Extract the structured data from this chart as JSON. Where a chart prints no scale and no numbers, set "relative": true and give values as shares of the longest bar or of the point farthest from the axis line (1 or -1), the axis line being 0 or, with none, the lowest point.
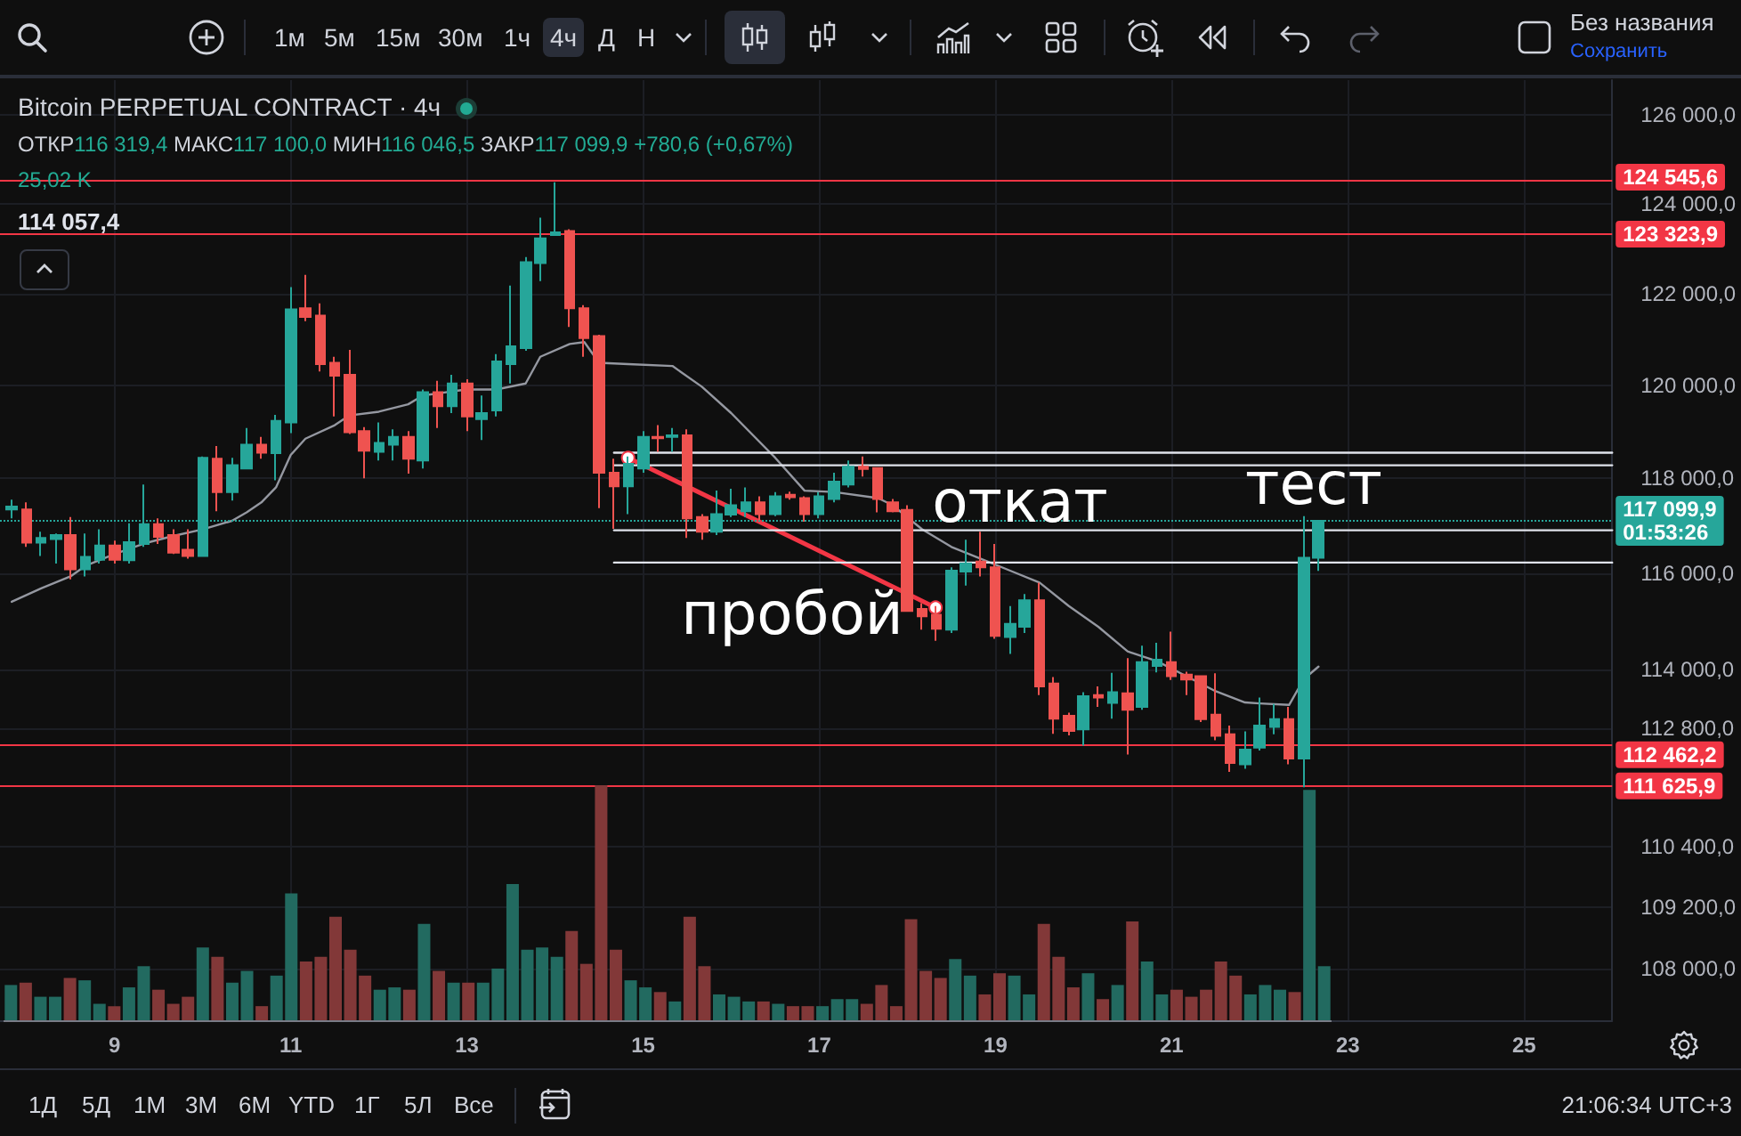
{
  "chart_data": [
    {
      "type": "candlestick",
      "title": "Bitcoin PERPETUAL CONTRACT · 4ч",
      "subtitle": "ОТКР116 319,4 МАКС117 100,0 МИН116 046,5 ЗАКР117 099,9 +780,6 (+0,67%)",
      "x": [
        7.833,
        8,
        8.167,
        8.333,
        8.5,
        8.667,
        8.833,
        9,
        9.167,
        9.333,
        9.5,
        9.667,
        9.833,
        10,
        10.167,
        10.333,
        10.5,
        10.667,
        10.833,
        11,
        11.167,
        11.333,
        11.5,
        11.667,
        11.833,
        12,
        12.167,
        12.333,
        12.5,
        12.667,
        12.833,
        13,
        13.167,
        13.333,
        13.5,
        13.667,
        13.833,
        14,
        14.167,
        14.333,
        14.5,
        14.667,
        14.833,
        15,
        15.167,
        15.333,
        15.5,
        15.667,
        15.833,
        16,
        16.167,
        16.333,
        16.5,
        16.667,
        16.833,
        17,
        17.167,
        17.333,
        17.5,
        17.667,
        17.833,
        18,
        18.167,
        18.333,
        18.5,
        18.667,
        18.833,
        19,
        19.167,
        19.333,
        19.5,
        19.667,
        19.833,
        20,
        20.167,
        20.333,
        20.5,
        20.667,
        20.833,
        21,
        21.167,
        21.333,
        21.5,
        21.667,
        21.833,
        22,
        22.167,
        22.333,
        22.5,
        22.667
      ],
      "xlim": [
        7.7,
        26
      ],
      "xticks": [
        9,
        11,
        13,
        15,
        17,
        19,
        21,
        23,
        25
      ],
      "ylim": [
        107000,
        126800
      ],
      "log": true,
      "yticks": [
        {
          "value": 108000,
          "label": "108 000,0"
        },
        {
          "value": 109200,
          "label": "109 200,0"
        },
        {
          "value": 110400,
          "label": "110 400,0"
        },
        {
          "value": 112800,
          "label": "112 800,0"
        },
        {
          "value": 114000,
          "label": "114 000,0"
        },
        {
          "value": 116000,
          "label": "116 000,0"
        },
        {
          "value": 118000,
          "label": "118 000,0"
        },
        {
          "value": 120000,
          "label": "120 000,0"
        },
        {
          "value": 122000,
          "label": "122 000,0"
        },
        {
          "value": 124000,
          "label": "124 000,0"
        },
        {
          "value": 126000,
          "label": "126 000,0"
        }
      ],
      "grid": true,
      "marker": "none",
      "series": [
        {
          "ohlc": [
            [
              117340,
              117550,
              117150,
              117400
            ],
            [
              117340,
              117490,
              116550,
              116640
            ],
            [
              116640,
              116870,
              116360,
              116740
            ],
            [
              116715,
              116830,
              116200,
              116800
            ],
            [
              116800,
              117180,
              115870,
              116080
            ],
            [
              116080,
              116830,
              115930,
              116340
            ],
            [
              116280,
              116920,
              116200,
              116580
            ],
            [
              116580,
              116680,
              116200,
              116280
            ],
            [
              116270,
              117050,
              116200,
              116650
            ],
            [
              116610,
              117870,
              116550,
              117030
            ],
            [
              117030,
              117150,
              116610,
              116760
            ],
            [
              116800,
              116920,
              116400,
              116430
            ],
            [
              116490,
              116920,
              116300,
              116360
            ],
            [
              116360,
              118470,
              116340,
              118440
            ],
            [
              118420,
              118690,
              117300,
              117710
            ],
            [
              117710,
              118440,
              117530,
              118280
            ],
            [
              118210,
              119080,
              118190,
              118720
            ],
            [
              118720,
              118890,
              118420,
              118550
            ],
            [
              118540,
              119360,
              117960,
              119230
            ],
            [
              119200,
              122150,
              118970,
              121660
            ],
            [
              121680,
              122420,
              121400,
              121490
            ],
            [
              121520,
              121790,
              120300,
              120460
            ],
            [
              120490,
              120620,
              119330,
              120210
            ],
            [
              120230,
              120770,
              118950,
              118990
            ],
            [
              119010,
              119100,
              118000,
              118590
            ],
            [
              118570,
              119200,
              118380,
              118760
            ],
            [
              118720,
              119050,
              118380,
              118890
            ],
            [
              118890,
              119010,
              118100,
              118420
            ],
            [
              118380,
              119910,
              118210,
              119850
            ],
            [
              119850,
              120100,
              119080,
              119550
            ],
            [
              119550,
              120230,
              119400,
              120040
            ],
            [
              120040,
              120130,
              119010,
              119330
            ],
            [
              119270,
              119780,
              118820,
              119400
            ],
            [
              119460,
              120680,
              119330,
              120520
            ],
            [
              120460,
              122180,
              120040,
              120850
            ],
            [
              120810,
              122810,
              120750,
              122700
            ],
            [
              122680,
              123690,
              122280,
              123230
            ],
            [
              123300,
              124480,
              123300,
              123360
            ],
            [
              123390,
              123430,
              121270,
              121680
            ],
            [
              121680,
              121750,
              120620,
              121030
            ],
            [
              121070,
              121100,
              117370,
              118120
            ],
            [
              118120,
              118420,
              116930,
              117830
            ],
            [
              117830,
              118470,
              117240,
              118310
            ],
            [
              118210,
              119010,
              118120,
              118890
            ],
            [
              118890,
              119140,
              118570,
              118860
            ],
            [
              118890,
              119080,
              118570,
              118920
            ],
            [
              118920,
              119050,
              116740,
              117150
            ],
            [
              117180,
              117240,
              116700,
              116870
            ],
            [
              116870,
              117740,
              116800,
              117240
            ],
            [
              117230,
              117780,
              117180,
              117430
            ],
            [
              117300,
              117810,
              117180,
              117490
            ],
            [
              117490,
              117620,
              117110,
              117240
            ],
            [
              117240,
              117710,
              117200,
              117620
            ],
            [
              117650,
              117720,
              117550,
              117600
            ],
            [
              117580,
              117620,
              117080,
              117240
            ],
            [
              117240,
              117710,
              117150,
              117620
            ],
            [
              117560,
              118120,
              117490,
              117930
            ],
            [
              117870,
              118380,
              117810,
              118250
            ],
            [
              118250,
              118470,
              118040,
              118200
            ],
            [
              118220,
              118240,
              117280,
              117560
            ],
            [
              117490,
              117560,
              117280,
              117300
            ],
            [
              117330,
              117430,
              115190,
              115210
            ],
            [
              115250,
              115370,
              114820,
              115100
            ],
            [
              115130,
              115310,
              114590,
              114840
            ],
            [
              114820,
              116120,
              114750,
              116050
            ],
            [
              116030,
              116700,
              115740,
              116200
            ],
            [
              116240,
              116870,
              115930,
              116120
            ],
            [
              116120,
              116610,
              114630,
              114690
            ],
            [
              114670,
              115310,
              114320,
              114940
            ],
            [
              114880,
              115560,
              114750,
              115430
            ],
            [
              115430,
              115800,
              113470,
              113650
            ],
            [
              113710,
              113840,
              112680,
              112990
            ],
            [
              113050,
              113110,
              112650,
              112740
            ],
            [
              112770,
              113530,
              112440,
              113450
            ],
            [
              113470,
              113650,
              113230,
              113420
            ],
            [
              113310,
              113930,
              112990,
              113530
            ],
            [
              113510,
              114230,
              112260,
              113170
            ],
            [
              113230,
              114490,
              113170,
              114150
            ],
            [
              114070,
              114550,
              113940,
              114200
            ],
            [
              114150,
              114780,
              113780,
              113860
            ],
            [
              113890,
              113950,
              113470,
              113790
            ],
            [
              113860,
              113870,
              112920,
              112980
            ],
            [
              113070,
              113920,
              112550,
              112640
            ],
            [
              112670,
              112850,
              111910,
              112090
            ],
            [
              112060,
              112730,
              111970,
              112360
            ],
            [
              112400,
              113420,
              112340,
              112850
            ],
            [
              112820,
              113290,
              112670,
              112980
            ],
            [
              112980,
              113230,
              112060,
              112180
            ],
            [
              112180,
              117200,
              111600,
              116319.4
            ],
            [
              116319.4,
              117100.0,
              116046.5,
              117099.9
            ]
          ],
          "colors": [
            "#26a69a",
            "#ef5350",
            "#26a69a",
            "#26a69a",
            "#ef5350",
            "#26a69a",
            "#26a69a",
            "#ef5350",
            "#26a69a",
            "#26a69a",
            "#ef5350",
            "#ef5350",
            "#ef5350",
            "#26a69a",
            "#ef5350",
            "#26a69a",
            "#26a69a",
            "#ef5350",
            "#26a69a",
            "#26a69a",
            "#ef5350",
            "#ef5350",
            "#ef5350",
            "#ef5350",
            "#ef5350",
            "#26a69a",
            "#26a69a",
            "#ef5350",
            "#26a69a",
            "#ef5350",
            "#26a69a",
            "#ef5350",
            "#26a69a",
            "#26a69a",
            "#26a69a",
            "#26a69a",
            "#26a69a",
            "#26a69a",
            "#ef5350",
            "#ef5350",
            "#ef5350",
            "#ef5350",
            "#26a69a",
            "#26a69a",
            "#ef5350",
            "#26a69a",
            "#ef5350",
            "#ef5350",
            "#26a69a",
            "#26a69a",
            "#26a69a",
            "#ef5350",
            "#26a69a",
            "#ef5350",
            "#ef5350",
            "#26a69a",
            "#26a69a",
            "#26a69a",
            "#ef5350",
            "#ef5350",
            "#ef5350",
            "#ef5350",
            "#ef5350",
            "#ef5350",
            "#26a69a",
            "#26a69a",
            "#ef5350",
            "#ef5350",
            "#26a69a",
            "#26a69a",
            "#ef5350",
            "#ef5350",
            "#ef5350",
            "#26a69a",
            "#ef5350",
            "#26a69a",
            "#ef5350",
            "#26a69a",
            "#26a69a",
            "#ef5350",
            "#ef5350",
            "#ef5350",
            "#ef5350",
            "#ef5350",
            "#26a69a",
            "#26a69a",
            "#26a69a",
            "#ef5350",
            "#26a69a",
            "#26a69a"
          ]
        },
        {
          "type": "line",
          "color": "#9598a1",
          "x": [
            7.833,
            8.167,
            8.5,
            8.667,
            9,
            9.333,
            9.667,
            10,
            10.333,
            10.5,
            10.667,
            10.833,
            11,
            11.167,
            11.5,
            11.667,
            12,
            12.333,
            12.5,
            12.833,
            13,
            13.333,
            13.667,
            13.833,
            14.167,
            14.333,
            14.5,
            14.833,
            15.333,
            15.667,
            16,
            16.5,
            16.833,
            17.167,
            17.667,
            17.833,
            18.167,
            18.5,
            18.833,
            19.167,
            19.5,
            19.833,
            20.167,
            20.5,
            20.833,
            21.167,
            21.5,
            21.833,
            22,
            22.333,
            22.5,
            22.667
          ],
          "values": [
            115400,
            115680,
            115930,
            116150,
            116400,
            116620,
            116780,
            116920,
            117100,
            117280,
            117490,
            117810,
            118500,
            118850,
            119140,
            119350,
            119430,
            119590,
            119780,
            119870,
            119910,
            119910,
            120040,
            120620,
            120900,
            120940,
            120490,
            120460,
            120420,
            119970,
            119400,
            118440,
            117740,
            117710,
            117580,
            117430,
            116920,
            116550,
            116300,
            116050,
            115800,
            115310,
            114880,
            114370,
            114170,
            113860,
            113550,
            113320,
            113300,
            113270,
            113800,
            114057.4
          ]
        },
        {
          "type": "line",
          "color": "#f23645",
          "marker": "circle",
          "x": [
            14.83,
            18.32
          ],
          "values": [
            118440,
            115280
          ]
        },
        {
          "type": "line",
          "color": "#e0e3eb",
          "x": [
            14.67,
            26
          ],
          "values": [
            118550,
            118550
          ]
        },
        {
          "type": "line",
          "color": "#e0e3eb",
          "x": [
            14.67,
            26
          ],
          "values": [
            118280,
            118280
          ]
        },
        {
          "type": "line",
          "color": "#e0e3eb",
          "x": [
            14.67,
            26
          ],
          "values": [
            116900,
            116900
          ]
        },
        {
          "type": "line",
          "color": "#e0e3eb",
          "x": [
            14.67,
            26
          ],
          "values": [
            116220,
            116220
          ]
        }
      ],
      "ref_lines": [
        {
          "axis": "y",
          "value": 124545.6,
          "label": "124 545,6",
          "color": "#f23645"
        },
        {
          "axis": "y",
          "value": 123323.9,
          "label": "123 323,9",
          "color": "#f23645"
        },
        {
          "axis": "y",
          "value": 112462.2,
          "label": "112 462,2",
          "color": "#f23645"
        },
        {
          "axis": "y",
          "value": 111625.9,
          "label": "111 625,9",
          "color": "#f23645"
        },
        {
          "axis": "y",
          "value": 117099.9,
          "label": "117 099,9\n01:53:26",
          "color": "#26a69a",
          "line_style": "dotted"
        }
      ],
      "annotations": [
        "пробой",
        "откат",
        "тест",
        "25,02 K",
        "114 057,4",
        "1м",
        "5м",
        "15м",
        "30м",
        "1ч",
        "4ч",
        "Д",
        "Н",
        "Без названия",
        "Сохранить",
        "1Д",
        "5Д",
        "1М",
        "3М",
        "6М",
        "YTD",
        "1Г",
        "5Л",
        "Все",
        "21:06:34 UTC+3"
      ]
    },
    {
      "type": "bar",
      "relative": true,
      "tick_labels": false,
      "categories": [
        null,
        null,
        null,
        null,
        null,
        null,
        null,
        null,
        null,
        null,
        null,
        null,
        null,
        null,
        null,
        null,
        null,
        null,
        null,
        null,
        null,
        null,
        null,
        null,
        null,
        null,
        null,
        null,
        null,
        null,
        null,
        null,
        null,
        null,
        null,
        null,
        null,
        null,
        null,
        null,
        null,
        null,
        null,
        null,
        null,
        null,
        null,
        null,
        null,
        null,
        null,
        null,
        null,
        null,
        null,
        null,
        null,
        null,
        null,
        null,
        null,
        null,
        null,
        null,
        null,
        null,
        null,
        null,
        null,
        null,
        null,
        null,
        null,
        null,
        null,
        null,
        null,
        null,
        null,
        null,
        null,
        null,
        null,
        null,
        null,
        null,
        null,
        null,
        null,
        null
      ],
      "values": [
        0.15,
        0.16,
        0.1,
        0.1,
        0.18,
        0.17,
        0.07,
        0.06,
        0.14,
        0.23,
        0.13,
        0.07,
        0.1,
        0.31,
        0.27,
        0.16,
        0.21,
        0.06,
        0.19,
        0.54,
        0.25,
        0.27,
        0.44,
        0.3,
        0.19,
        0.13,
        0.14,
        0.13,
        0.41,
        0.21,
        0.16,
        0.16,
        0.16,
        0.22,
        0.58,
        0.3,
        0.31,
        0.27,
        0.38,
        0.24,
        1,
        0.3,
        0.17,
        0.14,
        0.12,
        0.08,
        0.44,
        0.23,
        0.11,
        0.1,
        0.08,
        0.08,
        0.07,
        0.06,
        0.06,
        0.06,
        0.09,
        0.09,
        0.07,
        0.15,
        0.06,
        0.43,
        0.21,
        0.18,
        0.26,
        0.19,
        0.11,
        0.2,
        0.19,
        0.11,
        0.41,
        0.27,
        0.14,
        0.2,
        0.09,
        0.15,
        0.42,
        0.25,
        0.11,
        0.13,
        0.1,
        0.13,
        0.25,
        0.19,
        0.11,
        0.15,
        0.13,
        0.12,
        0.98,
        0.23
      ],
      "colors": [
        "#226a60",
        "#823838",
        "#226a60",
        "#226a60",
        "#823838",
        "#226a60",
        "#226a60",
        "#823838",
        "#226a60",
        "#226a60",
        "#823838",
        "#823838",
        "#823838",
        "#226a60",
        "#823838",
        "#226a60",
        "#226a60",
        "#823838",
        "#226a60",
        "#226a60",
        "#823838",
        "#823838",
        "#823838",
        "#823838",
        "#823838",
        "#226a60",
        "#226a60",
        "#823838",
        "#226a60",
        "#823838",
        "#226a60",
        "#823838",
        "#226a60",
        "#226a60",
        "#226a60",
        "#226a60",
        "#226a60",
        "#226a60",
        "#823838",
        "#823838",
        "#823838",
        "#823838",
        "#226a60",
        "#226a60",
        "#823838",
        "#226a60",
        "#823838",
        "#823838",
        "#226a60",
        "#226a60",
        "#226a60",
        "#823838",
        "#226a60",
        "#823838",
        "#823838",
        "#226a60",
        "#226a60",
        "#226a60",
        "#823838",
        "#823838",
        "#823838",
        "#823838",
        "#823838",
        "#823838",
        "#226a60",
        "#226a60",
        "#823838",
        "#823838",
        "#226a60",
        "#226a60",
        "#823838",
        "#823838",
        "#823838",
        "#226a60",
        "#823838",
        "#226a60",
        "#823838",
        "#226a60",
        "#226a60",
        "#823838",
        "#823838",
        "#823838",
        "#823838",
        "#823838",
        "#226a60",
        "#226a60",
        "#226a60",
        "#823838",
        "#226a60",
        "#226a60"
      ]
    }
  ]
}
